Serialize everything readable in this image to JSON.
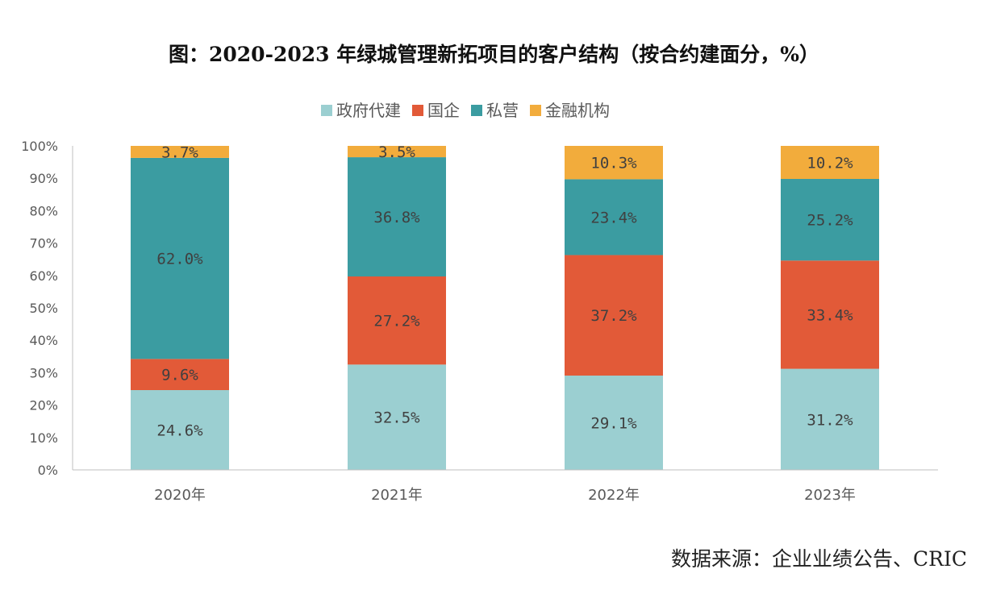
{
  "chart_data": {
    "type": "bar",
    "stacked": true,
    "percent": true,
    "title": "图：2020-2023 年绿城管理新拓项目的客户结构（按合约建面分，%）",
    "categories": [
      "2020年",
      "2021年",
      "2022年",
      "2023年"
    ],
    "series": [
      {
        "name": "政府代建",
        "color": "#9bcfd1",
        "values": [
          24.6,
          32.5,
          29.1,
          31.2
        ]
      },
      {
        "name": "国企",
        "color": "#e25a38",
        "values": [
          9.6,
          27.2,
          37.2,
          33.4
        ]
      },
      {
        "name": "私营",
        "color": "#3b9ca1",
        "values": [
          62.0,
          36.8,
          23.4,
          25.2
        ]
      },
      {
        "name": "金融机构",
        "color": "#f2ac3c",
        "values": [
          3.7,
          3.5,
          10.3,
          10.2
        ]
      }
    ],
    "data_labels": [
      [
        "24.6%",
        "32.5%",
        "29.1%",
        "31.2%"
      ],
      [
        "9.6%",
        "27.2%",
        "37.2%",
        "33.4%"
      ],
      [
        "62.0%",
        "36.8%",
        "23.4%",
        "25.2%"
      ],
      [
        "3.7%",
        "3.5%",
        "10.3%",
        "10.2%"
      ]
    ],
    "yticks": [
      "0%",
      "10%",
      "20%",
      "30%",
      "40%",
      "50%",
      "60%",
      "70%",
      "80%",
      "90%",
      "100%"
    ],
    "ylim": [
      0,
      100
    ],
    "xlabel": "",
    "ylabel": "",
    "legend_position": "top-center",
    "grid": false
  },
  "source": "数据来源：企业业绩公告、CRIC"
}
